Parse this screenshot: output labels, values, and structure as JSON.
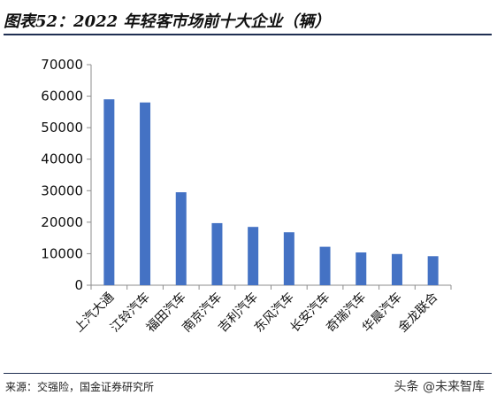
{
  "title": "图表52：2022 年轻客市场前十大企业（辆）",
  "source": "来源：交强险，国金证券研究所",
  "watermark": "头条 @未来智库",
  "colors": {
    "bar": "#4472c4",
    "rule": "#1f2f52"
  },
  "chart_data": {
    "type": "bar",
    "title": "2022 年轻客市场前十大企业（辆）",
    "xlabel": "",
    "ylabel": "",
    "categories": [
      "上汽大通",
      "江铃汽车",
      "福田汽车",
      "南京汽车",
      "吉利汽车",
      "东风汽车",
      "长安汽车",
      "奇瑞汽车",
      "华晨汽车",
      "金龙联合"
    ],
    "values": [
      59000,
      58000,
      29500,
      19700,
      18500,
      16800,
      12200,
      10400,
      9900,
      9200
    ],
    "ylim": [
      0,
      70000
    ],
    "yticks": [
      0,
      10000,
      20000,
      30000,
      40000,
      50000,
      60000,
      70000
    ],
    "grid": false,
    "legend": "none"
  }
}
